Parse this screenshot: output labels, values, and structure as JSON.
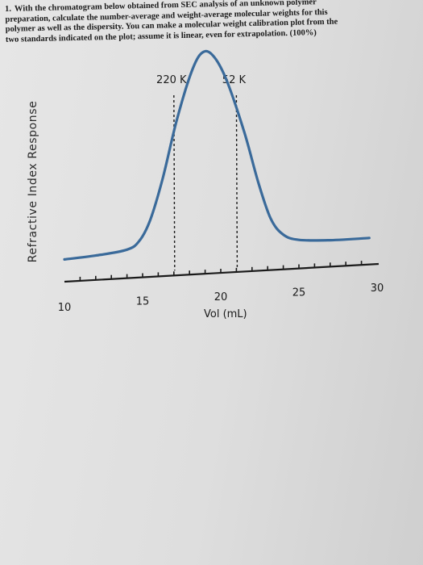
{
  "question": {
    "number": "1.",
    "lines": [
      "With the chromatogram below obtained from SEC analysis of an unknown polymer",
      "preparation, calculate the number-average and weight-average molecular weights for this",
      "polymer as well as the dispersity. You can make a molecular weight calibration plot from the",
      "two standards indicated on the plot; assume it is linear, even for extrapolation. (100%)"
    ]
  },
  "chart_data": {
    "type": "line",
    "xlabel": "Vol (mL)",
    "ylabel": "Refractive Index Response",
    "xlim": [
      10,
      30
    ],
    "xticks": [
      10,
      15,
      20,
      25,
      30
    ],
    "series": [
      {
        "x": [
          10,
          12,
          14,
          14.8,
          15.5,
          16.3,
          17.2,
          18.2,
          18.9,
          19.6,
          20.4,
          21.5,
          22.4,
          23.2,
          24.0,
          25.0,
          27.0,
          29.5
        ],
        "y": [
          0.03,
          0.04,
          0.06,
          0.1,
          0.2,
          0.4,
          0.68,
          0.92,
          1.0,
          0.97,
          0.85,
          0.6,
          0.35,
          0.17,
          0.09,
          0.06,
          0.05,
          0.05
        ]
      }
    ],
    "standards": [
      {
        "label": "220 K",
        "x": 17.0
      },
      {
        "label": "52 K",
        "x": 21.0
      }
    ],
    "line_color": "#3a6a9a",
    "grid": false
  }
}
